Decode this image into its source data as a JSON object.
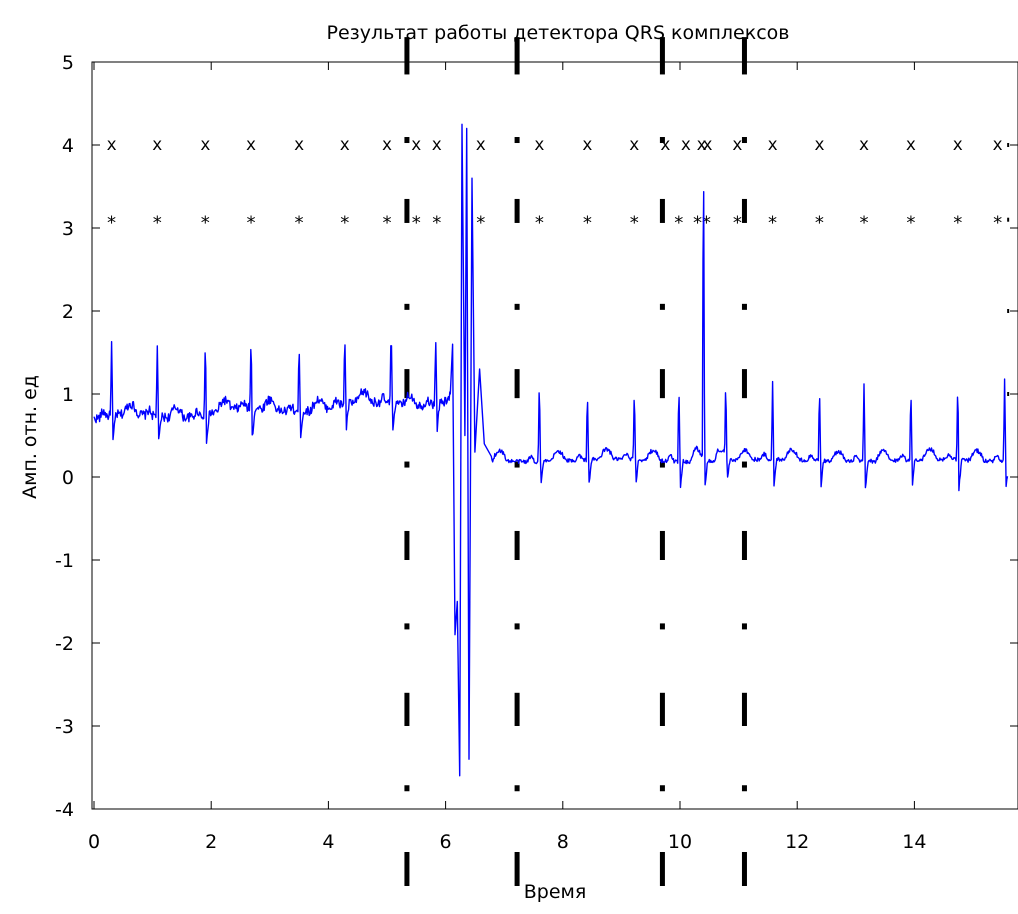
{
  "chart_data": {
    "type": "line",
    "title": "Результат работы детектора QRS комплексов",
    "xlabel": "Время",
    "ylabel": "Амп. отн. ед",
    "xlim": [
      0,
      15.6
    ],
    "ylim": [
      -4,
      5
    ],
    "x_ticks": [
      0,
      2,
      4,
      6,
      8,
      10,
      12,
      14
    ],
    "x_tick_labels": [
      "0",
      "2",
      "4",
      "6",
      "8",
      "10",
      "12",
      "14"
    ],
    "y_ticks": [
      -4,
      -3,
      -2,
      -1,
      0,
      1,
      2,
      3,
      4,
      5
    ],
    "y_tick_labels": [
      "-4",
      "-3",
      "-2",
      "-1",
      "0",
      "1",
      "2",
      "3",
      "4",
      "5"
    ],
    "grid": false,
    "series": [
      {
        "color": "#0000ff",
        "baseline_before_artifact": 0.7,
        "baseline_after_artifact": 0.2,
        "beats": [
          {
            "x": 0.3,
            "y": 1.63
          },
          {
            "x": 1.08,
            "y": 1.58
          },
          {
            "x": 1.9,
            "y": 1.68
          },
          {
            "x": 2.68,
            "y": 1.71
          },
          {
            "x": 3.5,
            "y": 1.65
          },
          {
            "x": 4.28,
            "y": 1.77
          },
          {
            "x": 5.07,
            "y": 1.88
          },
          {
            "x": 5.83,
            "y": 1.7
          },
          {
            "x": 6.6,
            "y": 1.3
          },
          {
            "x": 7.6,
            "y": 1.22
          },
          {
            "x": 8.42,
            "y": 1.07
          },
          {
            "x": 9.22,
            "y": 1.1
          },
          {
            "x": 9.98,
            "y": 1.15
          },
          {
            "x": 10.4,
            "y": 4.25
          },
          {
            "x": 10.78,
            "y": 1.22
          },
          {
            "x": 11.58,
            "y": 1.15
          },
          {
            "x": 12.38,
            "y": 1.13
          },
          {
            "x": 13.14,
            "y": 1.12
          },
          {
            "x": 13.94,
            "y": 1.1
          },
          {
            "x": 14.74,
            "y": 1.15
          },
          {
            "x": 15.54,
            "y": 1.18
          }
        ],
        "artifact": [
          {
            "x": 6.08,
            "y": 1.0
          },
          {
            "x": 6.12,
            "y": 1.6
          },
          {
            "x": 6.16,
            "y": -1.9
          },
          {
            "x": 6.2,
            "y": -1.5
          },
          {
            "x": 6.24,
            "y": -3.6
          },
          {
            "x": 6.28,
            "y": 4.25
          },
          {
            "x": 6.33,
            "y": 0.5
          },
          {
            "x": 6.36,
            "y": 4.2
          },
          {
            "x": 6.4,
            "y": -3.4
          },
          {
            "x": 6.45,
            "y": 3.6
          },
          {
            "x": 6.5,
            "y": 0.3
          },
          {
            "x": 6.58,
            "y": 1.3
          },
          {
            "x": 6.66,
            "y": 0.4
          },
          {
            "x": 6.78,
            "y": 0.25
          }
        ]
      }
    ],
    "x_markers": {
      "symbol": "x",
      "y": 4,
      "x": [
        0.3,
        1.08,
        1.9,
        2.68,
        3.5,
        4.28,
        5.0,
        5.5,
        5.85,
        6.6,
        7.6,
        8.42,
        9.22,
        9.75,
        10.1,
        10.37,
        10.47,
        10.98,
        11.58,
        12.38,
        13.14,
        13.94,
        14.74,
        15.42
      ]
    },
    "star_markers": {
      "symbol": "*",
      "y": 3.1,
      "x": [
        0.3,
        1.08,
        1.9,
        2.68,
        3.5,
        4.28,
        5.0,
        5.5,
        5.85,
        6.6,
        7.6,
        8.42,
        9.22,
        9.98,
        10.3,
        10.45,
        10.98,
        11.58,
        12.38,
        13.14,
        13.94,
        14.74,
        15.42
      ]
    },
    "vertical_markers": [
      5.34,
      7.22,
      9.7,
      11.1,
      15.6
    ]
  }
}
